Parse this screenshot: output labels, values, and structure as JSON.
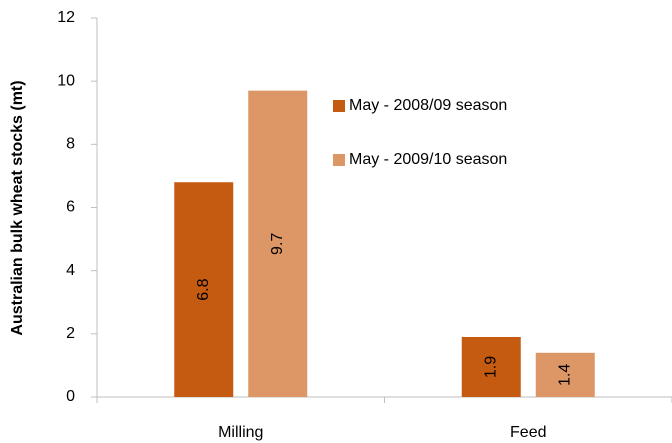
{
  "chart_data": {
    "type": "bar",
    "y_label": "Australian bulk wheat stocks (mt)",
    "categories": [
      "Milling",
      "Feed"
    ],
    "series": [
      {
        "name": "May - 2008/09 season",
        "color": "#c55a11",
        "values": [
          6.8,
          1.9
        ]
      },
      {
        "name": "May - 2009/10 season",
        "color": "#dd9666",
        "values": [
          9.7,
          1.4
        ]
      }
    ],
    "ylim": [
      0,
      12
    ],
    "yticks": [
      0,
      2,
      4,
      6,
      8,
      10,
      12
    ],
    "grid": false,
    "legend": "upper center"
  }
}
